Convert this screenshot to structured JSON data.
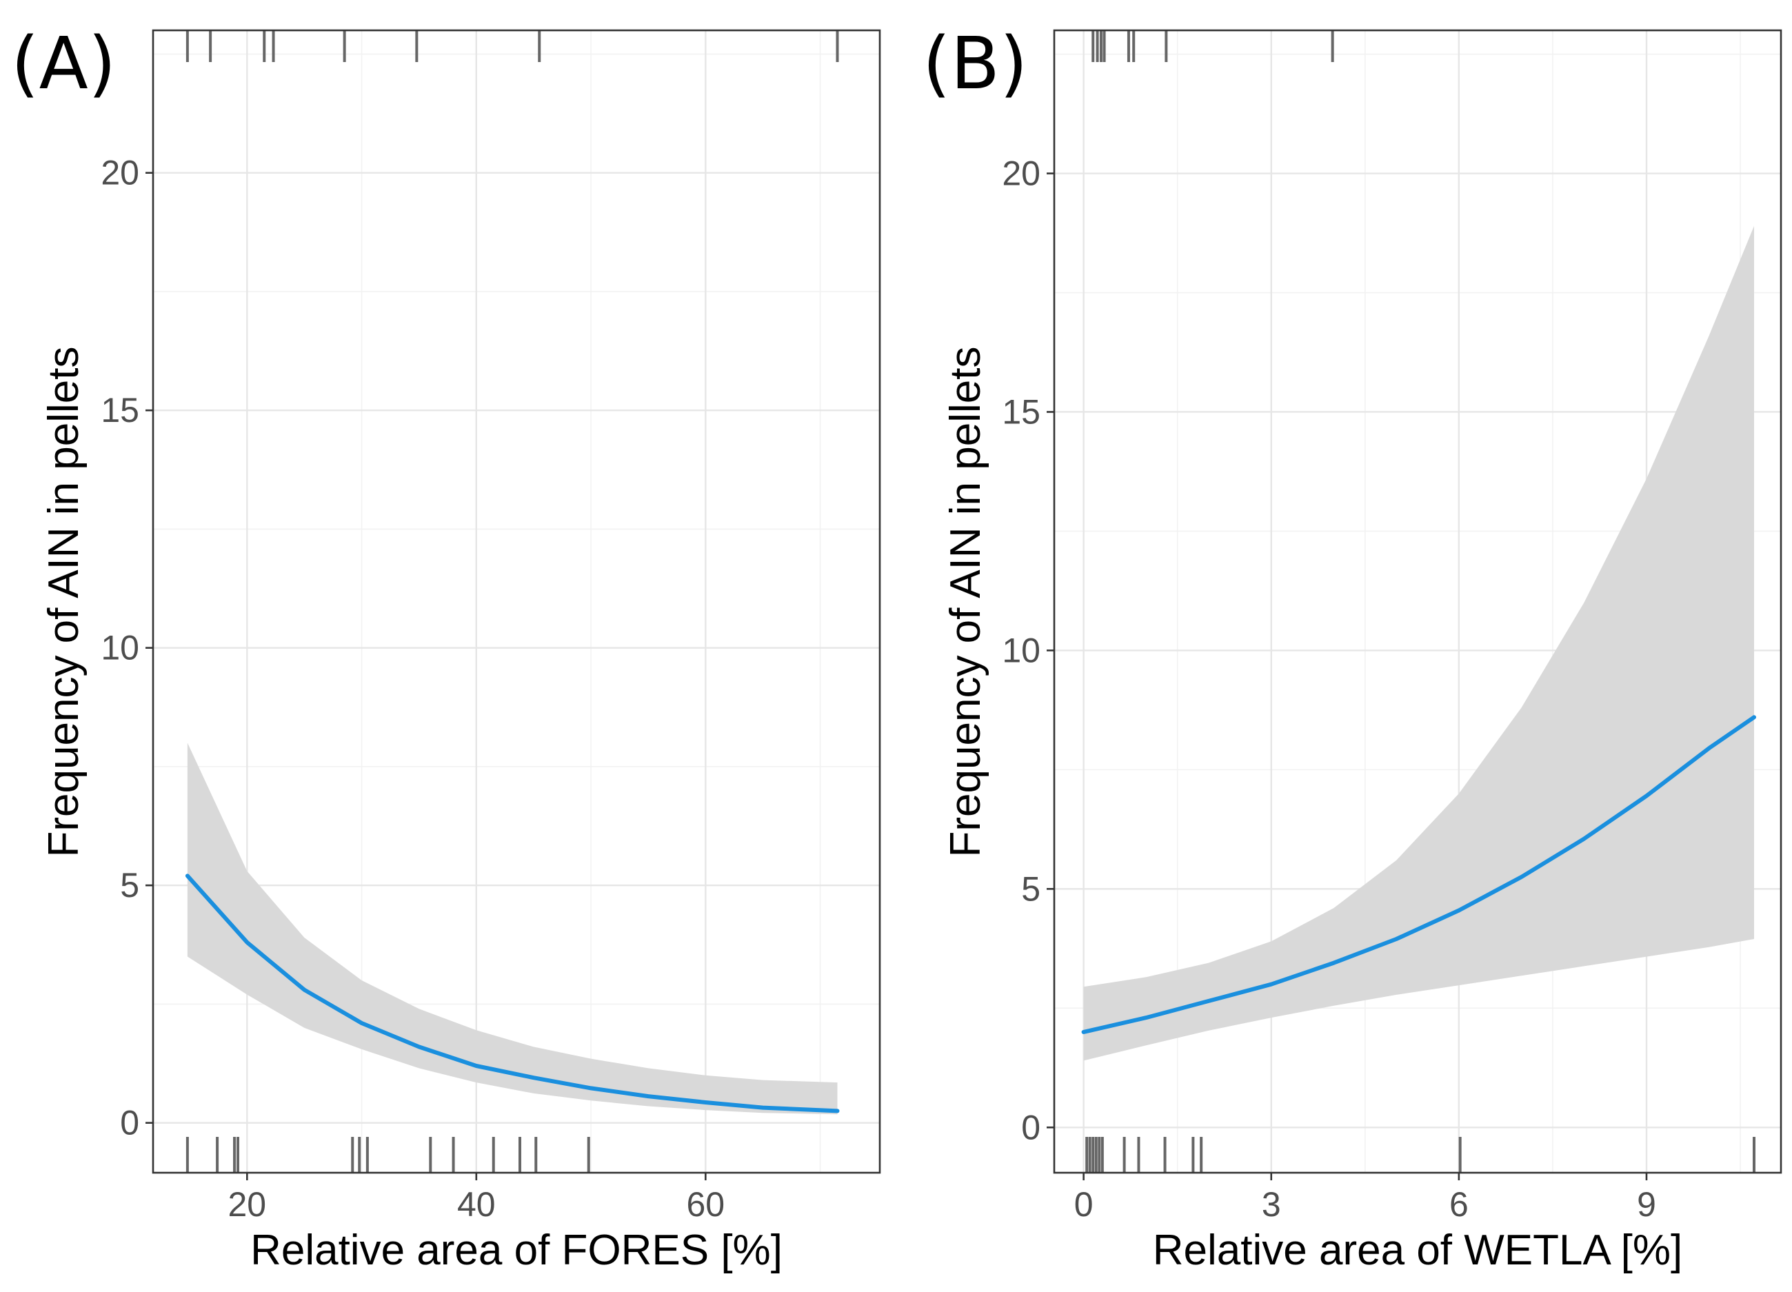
{
  "chart_data": [
    {
      "type": "line",
      "panel_label": "(A)",
      "title": "",
      "xlabel": "Relative area of FORES [%]",
      "ylabel": "Frequency of AIN in pellets",
      "xlim": [
        11.8,
        75.2
      ],
      "ylim": [
        -1.05,
        23
      ],
      "x_ticks": [
        20,
        40,
        60
      ],
      "x_tick_labels": [
        "20",
        "40",
        "60"
      ],
      "y_ticks": [
        0,
        5,
        10,
        15,
        20
      ],
      "y_tick_labels": [
        "0",
        "5",
        "10",
        "15",
        "20"
      ],
      "grid": true,
      "series": [
        {
          "name": "fit",
          "color": "#1a8fde",
          "x": [
            14.8,
            20,
            25,
            30,
            35,
            40,
            45,
            50,
            55,
            60,
            65,
            71.5
          ],
          "y": [
            5.2,
            3.8,
            2.8,
            2.1,
            1.6,
            1.2,
            0.95,
            0.73,
            0.56,
            0.43,
            0.32,
            0.25
          ],
          "ci_lower": [
            3.5,
            2.7,
            2.0,
            1.55,
            1.15,
            0.85,
            0.62,
            0.47,
            0.35,
            0.27,
            0.21,
            0.18
          ],
          "ci_upper": [
            8.0,
            5.3,
            3.9,
            3.0,
            2.4,
            1.95,
            1.6,
            1.35,
            1.15,
            1.0,
            0.9,
            0.85
          ]
        }
      ],
      "rug_top": [
        14.8,
        16.8,
        21.5,
        22.3,
        28.5,
        34.8,
        45.5,
        71.5
      ],
      "rug_bottom": [
        14.8,
        17.4,
        18.9,
        19.2,
        29.2,
        29.8,
        30.5,
        36.0,
        38.0,
        41.5,
        43.8,
        45.2,
        49.8
      ]
    },
    {
      "type": "line",
      "panel_label": "(B)",
      "title": "",
      "xlabel": "Relative area of WETLA [%]",
      "ylabel": "Frequency of AIN in pellets",
      "xlim": [
        -0.47,
        11.15
      ],
      "ylim": [
        -0.95,
        23
      ],
      "x_ticks": [
        0,
        3,
        6,
        9
      ],
      "x_tick_labels": [
        "0",
        "3",
        "6",
        "9"
      ],
      "y_ticks": [
        0,
        5,
        10,
        15,
        20
      ],
      "y_tick_labels": [
        "0",
        "5",
        "10",
        "15",
        "20"
      ],
      "grid": true,
      "series": [
        {
          "name": "fit",
          "color": "#1a8fde",
          "x": [
            0,
            1,
            2,
            3,
            4,
            5,
            6,
            7,
            8,
            9,
            10,
            10.72
          ],
          "y": [
            2.0,
            2.3,
            2.65,
            3.0,
            3.45,
            3.95,
            4.55,
            5.25,
            6.05,
            6.95,
            7.95,
            8.6
          ],
          "ci_lower": [
            1.4,
            1.72,
            2.03,
            2.3,
            2.55,
            2.78,
            2.98,
            3.18,
            3.38,
            3.58,
            3.78,
            3.95
          ],
          "ci_upper": [
            2.95,
            3.15,
            3.45,
            3.9,
            4.6,
            5.6,
            7.0,
            8.8,
            11.0,
            13.6,
            16.6,
            18.9
          ]
        }
      ],
      "rug_top": [
        0.15,
        0.22,
        0.28,
        0.33,
        0.72,
        0.8,
        1.32,
        3.98
      ],
      "rug_bottom": [
        0.05,
        0.1,
        0.15,
        0.2,
        0.25,
        0.3,
        0.65,
        0.88,
        1.3,
        1.75,
        1.88,
        6.02,
        10.72
      ]
    }
  ]
}
